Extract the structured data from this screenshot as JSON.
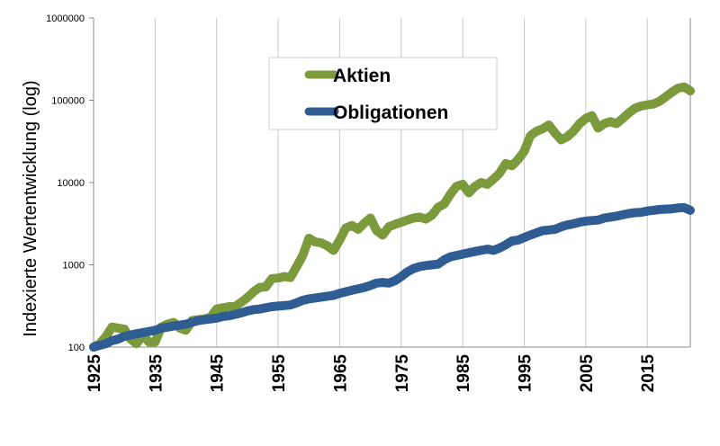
{
  "chart_data": {
    "type": "line",
    "title": "",
    "xlabel": "",
    "ylabel": "Indexierte Wertentwicklung (log)",
    "yscale": "log",
    "xlim": [
      1925,
      2022
    ],
    "ylim": [
      100,
      1000000
    ],
    "grid": "vertical",
    "legend_position": "top-center",
    "x_ticks": [
      "1925",
      "1935",
      "1945",
      "1955",
      "1965",
      "1975",
      "1985",
      "1995",
      "2005",
      "2015"
    ],
    "y_ticks": [
      "100",
      "1000",
      "10000",
      "100000",
      "1000000"
    ],
    "colors": {
      "Aktien": "#7a9a3c",
      "Obligationen": "#2f5d93",
      "grid": "#c8c8c8",
      "axis": "#888888"
    },
    "series": [
      {
        "name": "Aktien",
        "x": [
          1925,
          1926,
          1927,
          1928,
          1929,
          1930,
          1931,
          1932,
          1933,
          1934,
          1935,
          1936,
          1937,
          1938,
          1939,
          1940,
          1941,
          1942,
          1943,
          1944,
          1945,
          1946,
          1947,
          1948,
          1949,
          1950,
          1951,
          1952,
          1953,
          1954,
          1955,
          1956,
          1957,
          1958,
          1959,
          1960,
          1961,
          1962,
          1963,
          1964,
          1965,
          1966,
          1967,
          1968,
          1969,
          1970,
          1971,
          1972,
          1973,
          1974,
          1975,
          1976,
          1977,
          1978,
          1979,
          1980,
          1981,
          1982,
          1983,
          1984,
          1985,
          1986,
          1987,
          1988,
          1989,
          1990,
          1991,
          1992,
          1993,
          1994,
          1995,
          1996,
          1997,
          1998,
          1999,
          2000,
          2001,
          2002,
          2003,
          2004,
          2005,
          2006,
          2007,
          2008,
          2009,
          2010,
          2011,
          2012,
          2013,
          2014,
          2015,
          2016,
          2017,
          2018,
          2019,
          2020,
          2021,
          2022
        ],
        "values": [
          100,
          110,
          135,
          175,
          170,
          165,
          125,
          110,
          140,
          115,
          115,
          175,
          190,
          200,
          170,
          160,
          210,
          215,
          220,
          230,
          290,
          300,
          310,
          310,
          350,
          400,
          470,
          530,
          540,
          680,
          690,
          720,
          700,
          950,
          1300,
          2100,
          1900,
          1850,
          1700,
          1500,
          2000,
          2800,
          3000,
          2700,
          3200,
          3700,
          2600,
          2300,
          2900,
          3100,
          3300,
          3500,
          3700,
          3800,
          3600,
          4000,
          5000,
          5500,
          7200,
          9000,
          9500,
          7500,
          9000,
          10000,
          9500,
          11000,
          13000,
          17000,
          16000,
          19000,
          24000,
          37000,
          42000,
          45000,
          50000,
          40000,
          33000,
          36000,
          42000,
          52000,
          60000,
          65000,
          46000,
          52000,
          55000,
          52000,
          60000,
          70000,
          80000,
          85000,
          88000,
          90000,
          97000,
          110000,
          125000,
          140000,
          145000,
          130000
        ]
      },
      {
        "name": "Obligationen",
        "x": [
          1925,
          1926,
          1927,
          1928,
          1929,
          1930,
          1931,
          1932,
          1933,
          1934,
          1935,
          1936,
          1937,
          1938,
          1939,
          1940,
          1941,
          1942,
          1943,
          1944,
          1945,
          1946,
          1947,
          1948,
          1949,
          1950,
          1951,
          1952,
          1953,
          1954,
          1955,
          1956,
          1957,
          1958,
          1959,
          1960,
          1961,
          1962,
          1963,
          1964,
          1965,
          1966,
          1967,
          1968,
          1969,
          1970,
          1971,
          1972,
          1973,
          1974,
          1975,
          1976,
          1977,
          1978,
          1979,
          1980,
          1981,
          1982,
          1983,
          1984,
          1985,
          1986,
          1987,
          1988,
          1989,
          1990,
          1991,
          1992,
          1993,
          1994,
          1995,
          1996,
          1997,
          1998,
          1999,
          2000,
          2001,
          2002,
          2003,
          2004,
          2005,
          2006,
          2007,
          2008,
          2009,
          2010,
          2011,
          2012,
          2013,
          2014,
          2015,
          2016,
          2017,
          2018,
          2019,
          2020,
          2021,
          2022
        ],
        "values": [
          100,
          105,
          110,
          120,
          125,
          135,
          140,
          145,
          150,
          155,
          160,
          170,
          175,
          180,
          185,
          190,
          200,
          210,
          215,
          220,
          225,
          235,
          240,
          250,
          260,
          275,
          285,
          290,
          300,
          310,
          315,
          320,
          325,
          345,
          370,
          385,
          395,
          405,
          415,
          425,
          450,
          470,
          490,
          510,
          530,
          560,
          600,
          610,
          600,
          640,
          720,
          820,
          900,
          950,
          980,
          1000,
          1020,
          1150,
          1250,
          1300,
          1350,
          1400,
          1450,
          1500,
          1550,
          1500,
          1600,
          1750,
          1950,
          2000,
          2150,
          2300,
          2450,
          2600,
          2650,
          2700,
          2900,
          3050,
          3150,
          3300,
          3400,
          3450,
          3500,
          3700,
          3800,
          3900,
          4050,
          4200,
          4300,
          4350,
          4500,
          4600,
          4700,
          4750,
          4800,
          4900,
          4950,
          4600
        ]
      }
    ]
  }
}
